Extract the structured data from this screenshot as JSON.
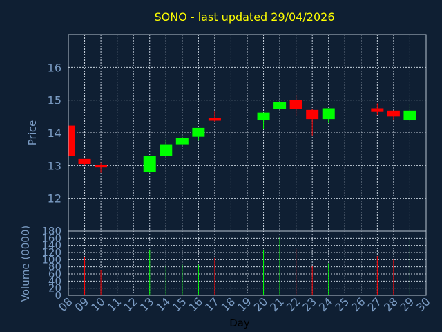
{
  "title": "SONO - last updated 29/04/2026",
  "chart_data": [
    {
      "type": "candlestick",
      "ylabel": "Price",
      "ylim": [
        11.0,
        17.0
      ],
      "yticks": [
        12,
        13,
        14,
        15,
        16
      ],
      "grid": true,
      "candles": [
        {
          "day": "08",
          "open": 14.22,
          "high": 14.22,
          "low": 13.3,
          "close": 13.3
        },
        {
          "day": "09",
          "open": 13.2,
          "high": 13.2,
          "low": 13.0,
          "close": 13.05
        },
        {
          "day": "10",
          "open": 13.02,
          "high": 13.1,
          "low": 12.78,
          "close": 12.94
        },
        {
          "day": "13",
          "open": 12.8,
          "high": 13.3,
          "low": 12.78,
          "close": 13.3
        },
        {
          "day": "14",
          "open": 13.3,
          "high": 13.8,
          "low": 13.28,
          "close": 13.65
        },
        {
          "day": "15",
          "open": 13.65,
          "high": 13.88,
          "low": 13.62,
          "close": 13.85
        },
        {
          "day": "16",
          "open": 13.88,
          "high": 14.15,
          "low": 13.76,
          "close": 14.15
        },
        {
          "day": "17",
          "open": 14.45,
          "high": 14.65,
          "low": 14.34,
          "close": 14.37
        },
        {
          "day": "20",
          "open": 14.38,
          "high": 14.62,
          "low": 14.12,
          "close": 14.62
        },
        {
          "day": "21",
          "open": 14.72,
          "high": 14.95,
          "low": 14.72,
          "close": 14.95
        },
        {
          "day": "22",
          "open": 15.0,
          "high": 15.15,
          "low": 14.52,
          "close": 14.72
        },
        {
          "day": "23",
          "open": 14.7,
          "high": 14.72,
          "low": 13.92,
          "close": 14.42
        },
        {
          "day": "24",
          "open": 14.42,
          "high": 14.75,
          "low": 14.3,
          "close": 14.75
        },
        {
          "day": "27",
          "open": 14.75,
          "high": 14.9,
          "low": 14.55,
          "close": 14.64
        },
        {
          "day": "28",
          "open": 14.68,
          "high": 14.68,
          "low": 14.4,
          "close": 14.5
        },
        {
          "day": "29",
          "open": 14.38,
          "high": 14.88,
          "low": 14.35,
          "close": 14.68
        }
      ]
    },
    {
      "type": "bar",
      "ylabel": "Volume (0000)",
      "xlabel": "Day",
      "ylim": [
        0,
        180
      ],
      "yticks": [
        0,
        20,
        40,
        60,
        80,
        100,
        120,
        140,
        160,
        180
      ],
      "xlim": [
        8,
        30
      ],
      "xticks": [
        "08",
        "09",
        "10",
        "11",
        "12",
        "13",
        "14",
        "15",
        "16",
        "17",
        "18",
        "19",
        "20",
        "21",
        "22",
        "23",
        "24",
        "25",
        "26",
        "27",
        "28",
        "29",
        "30"
      ],
      "grid": true,
      "bars": [
        {
          "day": "09",
          "value": 107,
          "direction": "down"
        },
        {
          "day": "10",
          "value": 70,
          "direction": "down"
        },
        {
          "day": "13",
          "value": 128,
          "direction": "up"
        },
        {
          "day": "14",
          "value": 82,
          "direction": "up"
        },
        {
          "day": "15",
          "value": 86,
          "direction": "up"
        },
        {
          "day": "16",
          "value": 86,
          "direction": "up"
        },
        {
          "day": "17",
          "value": 105,
          "direction": "down"
        },
        {
          "day": "20",
          "value": 128,
          "direction": "up"
        },
        {
          "day": "21",
          "value": 162,
          "direction": "up"
        },
        {
          "day": "22",
          "value": 130,
          "direction": "down"
        },
        {
          "day": "23",
          "value": 82,
          "direction": "down"
        },
        {
          "day": "24",
          "value": 90,
          "direction": "up"
        },
        {
          "day": "27",
          "value": 110,
          "direction": "down"
        },
        {
          "day": "28",
          "value": 100,
          "direction": "down"
        },
        {
          "day": "29",
          "value": 155,
          "direction": "up"
        }
      ]
    }
  ],
  "colors": {
    "up": "#00ff00",
    "down": "#ff0000",
    "title": "#ffff00",
    "axis_text": "#7b9cc4",
    "background": "#0f1f33",
    "frame": "#b8c4d2"
  }
}
